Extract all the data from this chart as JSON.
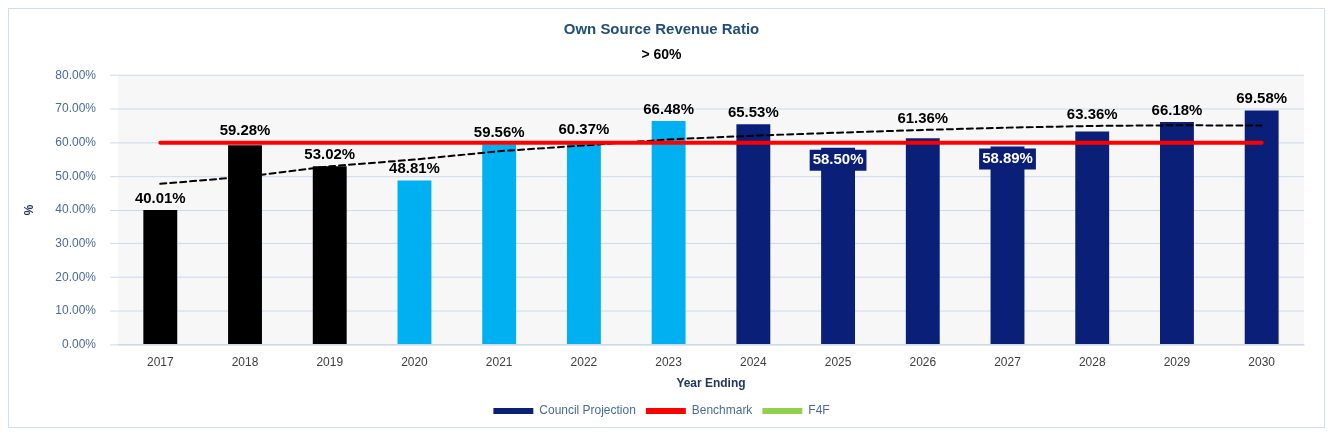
{
  "chart_data": {
    "type": "bar",
    "title": "Own Source Revenue Ratio",
    "subtitle": "> 60%",
    "xlabel": "Year Ending",
    "ylabel": "%",
    "categories": [
      "2017",
      "2018",
      "2019",
      "2020",
      "2021",
      "2022",
      "2023",
      "2024",
      "2025",
      "2026",
      "2027",
      "2028",
      "2029",
      "2030"
    ],
    "series": [
      {
        "name": "Council Projection",
        "color": "#0a1f78",
        "colors": [
          "#000000",
          "#000000",
          "#000000",
          "#00b0f0",
          "#00b0f0",
          "#00b0f0",
          "#00b0f0",
          "#0a1f78",
          "#0a1f78",
          "#0a1f78",
          "#0a1f78",
          "#0a1f78",
          "#0a1f78",
          "#0a1f78"
        ],
        "values": [
          40.01,
          59.28,
          53.02,
          48.81,
          59.56,
          60.37,
          66.48,
          65.53,
          58.5,
          61.36,
          58.89,
          63.36,
          66.18,
          69.58
        ],
        "value_labels": [
          "40.01%",
          "59.28%",
          "53.02%",
          "48.81%",
          "59.56%",
          "60.37%",
          "66.48%",
          "65.53%",
          "58.50%",
          "61.36%",
          "58.89%",
          "63.36%",
          "66.18%",
          "69.58%"
        ]
      },
      {
        "name": "Benchmark",
        "type": "line",
        "color": "#ff0000",
        "marker": "none",
        "values": [
          60,
          60,
          60,
          60,
          60,
          60,
          60,
          60,
          60,
          60,
          60,
          60,
          60,
          60
        ]
      },
      {
        "name": "F4F",
        "type": "line",
        "color": "#92d050",
        "marker": "circle",
        "values": [
          null,
          null,
          null,
          null,
          null,
          null,
          null,
          null,
          null,
          null,
          null,
          null,
          null,
          null
        ]
      },
      {
        "type": "line",
        "color": "#000000",
        "line_style": "dashed",
        "marker": "none",
        "values": [
          47.8,
          49.9,
          53,
          55,
          57.5,
          59.2,
          61,
          62.1,
          63,
          63.8,
          64.5,
          65,
          65.2,
          65.1
        ]
      }
    ],
    "ylim": [
      0,
      80
    ],
    "yticks": [
      {
        "value": 0,
        "label": "0.00%"
      },
      {
        "value": 10,
        "label": "10.00%"
      },
      {
        "value": 20,
        "label": "20.00%"
      },
      {
        "value": 30,
        "label": "30.00%"
      },
      {
        "value": 40,
        "label": "40.00%"
      },
      {
        "value": 50,
        "label": "50.00%"
      },
      {
        "value": 60,
        "label": "60.00%"
      },
      {
        "value": 70,
        "label": "70.00%"
      },
      {
        "value": 80,
        "label": "80.00%"
      }
    ],
    "grid": "y",
    "legend": "bottom"
  }
}
